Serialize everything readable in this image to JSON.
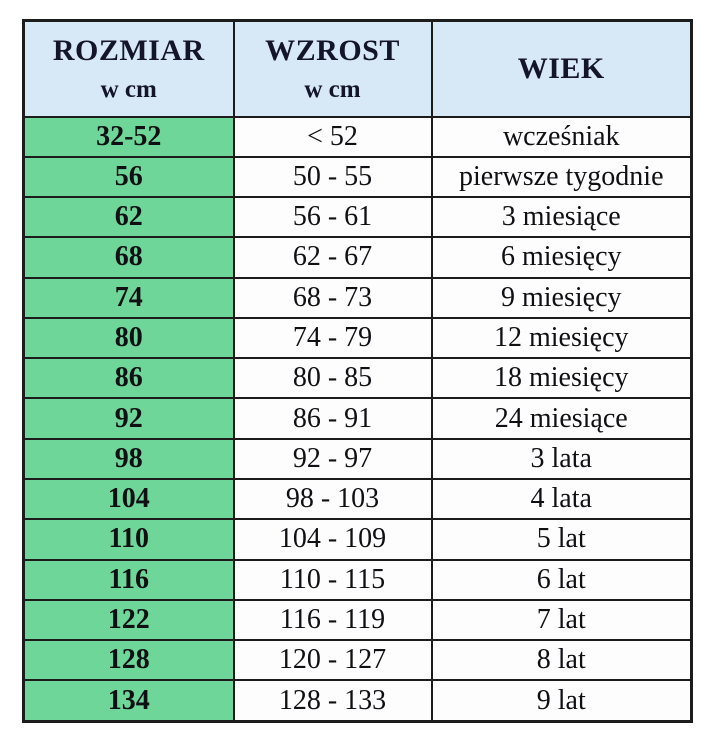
{
  "colors": {
    "header_bg": "#d7e9f6",
    "size_col_bg": "#6ed698",
    "body_bg": "#fdfdfd",
    "border": "#1c1c1c"
  },
  "chart_data": {
    "type": "table",
    "title": "",
    "columns": [
      {
        "title": "ROZMIAR",
        "subtitle": "w cm"
      },
      {
        "title": "WZROST",
        "subtitle": "w cm"
      },
      {
        "title": "WIEK",
        "subtitle": ""
      }
    ],
    "rows": [
      {
        "rozmiar": "32-52",
        "wzrost": "< 52",
        "wiek": "wcześniak"
      },
      {
        "rozmiar": "56",
        "wzrost": "50 - 55",
        "wiek": "pierwsze tygodnie"
      },
      {
        "rozmiar": "62",
        "wzrost": "56 - 61",
        "wiek": "3 miesiące"
      },
      {
        "rozmiar": "68",
        "wzrost": "62 - 67",
        "wiek": "6 miesięcy"
      },
      {
        "rozmiar": "74",
        "wzrost": "68 - 73",
        "wiek": "9 miesięcy"
      },
      {
        "rozmiar": "80",
        "wzrost": "74 - 79",
        "wiek": "12 miesięcy"
      },
      {
        "rozmiar": "86",
        "wzrost": "80 - 85",
        "wiek": "18 miesięcy"
      },
      {
        "rozmiar": "92",
        "wzrost": "86 - 91",
        "wiek": "24 miesiące"
      },
      {
        "rozmiar": "98",
        "wzrost": "92 - 97",
        "wiek": "3 lata"
      },
      {
        "rozmiar": "104",
        "wzrost": "98 - 103",
        "wiek": "4 lata"
      },
      {
        "rozmiar": "110",
        "wzrost": "104 - 109",
        "wiek": "5 lat"
      },
      {
        "rozmiar": "116",
        "wzrost": "110 - 115",
        "wiek": "6 lat"
      },
      {
        "rozmiar": "122",
        "wzrost": "116 - 119",
        "wiek": "7 lat"
      },
      {
        "rozmiar": "128",
        "wzrost": "120 - 127",
        "wiek": "8 lat"
      },
      {
        "rozmiar": "134",
        "wzrost": "128 - 133",
        "wiek": "9 lat"
      }
    ]
  }
}
